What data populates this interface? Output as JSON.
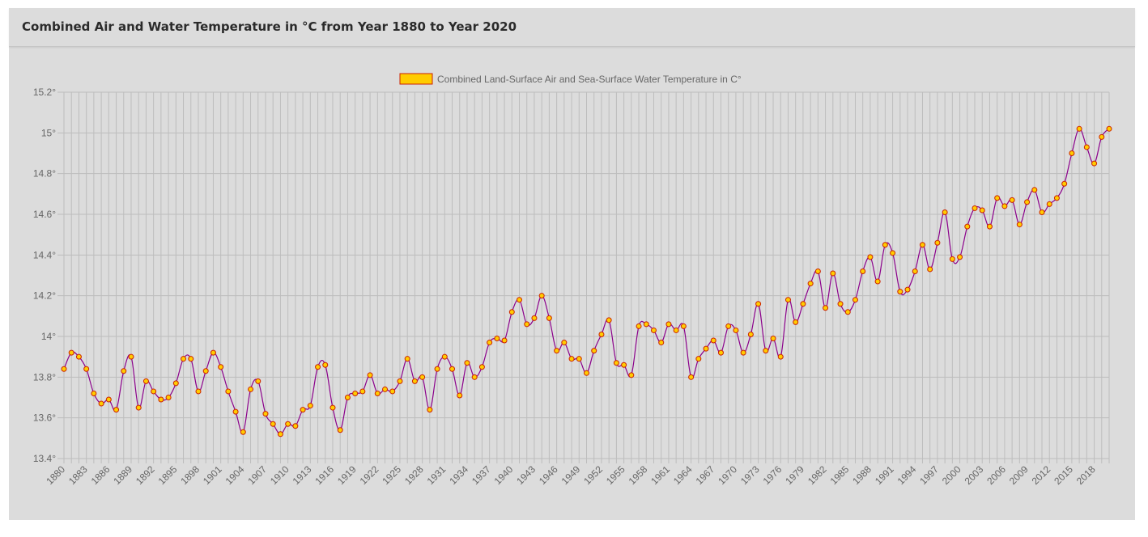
{
  "header": {
    "title": "Combined Air and Water Temperature in °C from Year 1880 to Year 2020"
  },
  "colors": {
    "line": "#8b008b",
    "point_fill": "#ffcc00",
    "point_stroke": "#cc2200",
    "legend_swatch": "#ffcc00",
    "grid": "#bdbdbd"
  },
  "chart_data": {
    "type": "line",
    "title": "",
    "xlabel": "",
    "ylabel": "",
    "ylim": [
      13.4,
      15.2
    ],
    "y_ticks": [
      "13.4°",
      "13.6°",
      "13.8°",
      "14°",
      "14.2°",
      "14.4°",
      "14.6°",
      "14.8°",
      "15°",
      "15.2°"
    ],
    "x_ticks": [
      "1880",
      "1883",
      "1886",
      "1889",
      "1892",
      "1895",
      "1898",
      "1901",
      "1904",
      "1907",
      "1910",
      "1913",
      "1916",
      "1919",
      "1922",
      "1925",
      "1928",
      "1931",
      "1934",
      "1937",
      "1940",
      "1943",
      "1946",
      "1949",
      "1952",
      "1955",
      "1958",
      "1961",
      "1964",
      "1967",
      "1970",
      "1973",
      "1976",
      "1979",
      "1982",
      "1985",
      "1988",
      "1991",
      "1994",
      "1997",
      "2000",
      "2003",
      "2006",
      "2009",
      "2012",
      "2015",
      "2018"
    ],
    "legend_position": "top",
    "grid": true,
    "series": [
      {
        "name": "Combined Land-Surface Air and Sea-Surface Water Temperature in C°",
        "x_start": 1880,
        "values": [
          13.84,
          13.92,
          13.9,
          13.84,
          13.72,
          13.67,
          13.69,
          13.64,
          13.83,
          13.9,
          13.65,
          13.78,
          13.73,
          13.69,
          13.7,
          13.77,
          13.89,
          13.89,
          13.73,
          13.83,
          13.92,
          13.85,
          13.73,
          13.63,
          13.53,
          13.74,
          13.78,
          13.62,
          13.57,
          13.52,
          13.57,
          13.56,
          13.64,
          13.66,
          13.85,
          13.86,
          13.65,
          13.54,
          13.7,
          13.72,
          13.73,
          13.81,
          13.72,
          13.74,
          13.73,
          13.78,
          13.89,
          13.78,
          13.8,
          13.64,
          13.84,
          13.9,
          13.84,
          13.71,
          13.87,
          13.8,
          13.85,
          13.97,
          13.99,
          13.98,
          14.12,
          14.18,
          14.06,
          14.09,
          14.2,
          14.09,
          13.93,
          13.97,
          13.89,
          13.89,
          13.82,
          13.93,
          14.01,
          14.08,
          13.87,
          13.86,
          13.81,
          14.05,
          14.06,
          14.03,
          13.97,
          14.06,
          14.03,
          14.05,
          13.8,
          13.89,
          13.94,
          13.98,
          13.92,
          14.05,
          14.03,
          13.92,
          14.01,
          14.16,
          13.93,
          13.99,
          13.9,
          14.18,
          14.07,
          14.16,
          14.26,
          14.32,
          14.14,
          14.31,
          14.16,
          14.12,
          14.18,
          14.32,
          14.39,
          14.27,
          14.45,
          14.41,
          14.22,
          14.23,
          14.32,
          14.45,
          14.33,
          14.46,
          14.61,
          14.38,
          14.39,
          14.54,
          14.63,
          14.62,
          14.54,
          14.68,
          14.64,
          14.67,
          14.55,
          14.66,
          14.72,
          14.61,
          14.65,
          14.68,
          14.75,
          14.9,
          15.02,
          14.93,
          14.85,
          14.98,
          15.02
        ]
      }
    ]
  }
}
